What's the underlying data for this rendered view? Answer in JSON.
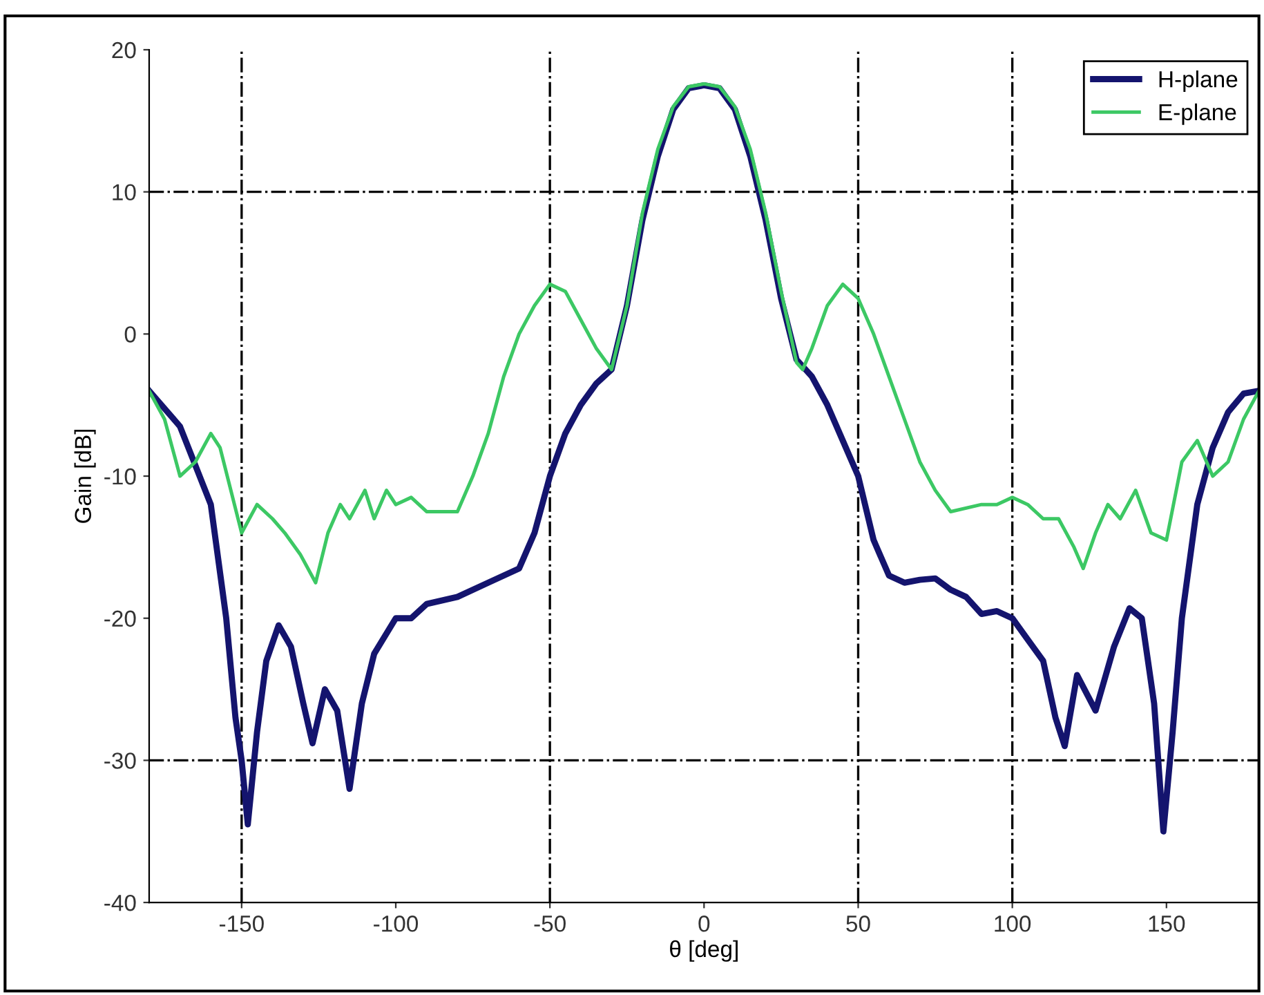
{
  "chart_data": {
    "type": "line",
    "xlabel": "θ [deg]",
    "ylabel": "Gain [dB]",
    "xlim": [
      -180,
      180
    ],
    "ylim": [
      -40,
      20
    ],
    "xticks": [
      -150,
      -100,
      -50,
      0,
      50,
      100,
      150
    ],
    "yticks": [
      -40,
      -30,
      -20,
      -10,
      0,
      10,
      20
    ],
    "legend": "top right",
    "line_style": "solid",
    "ref_lines": [
      {
        "axis": "x",
        "value": -150,
        "line_style": "dashdot"
      },
      {
        "axis": "x",
        "value": -50,
        "line_style": "dashdot"
      },
      {
        "axis": "x",
        "value": 50,
        "line_style": "dashdot"
      },
      {
        "axis": "x",
        "value": 100,
        "line_style": "dashdot"
      },
      {
        "axis": "y",
        "value": 10,
        "line_style": "dashdot"
      },
      {
        "axis": "y",
        "value": -30,
        "line_style": "dashdot"
      }
    ],
    "series": [
      {
        "name": "H-plane",
        "color": "#14146e",
        "x": [
          -180,
          -170,
          -160,
          -155,
          -152,
          -150,
          -148,
          -145,
          -142,
          -138,
          -134,
          -130,
          -127,
          -123,
          -119,
          -115,
          -111,
          -107,
          -100,
          -95,
          -90,
          -80,
          -70,
          -60,
          -55,
          -50,
          -45,
          -40,
          -35,
          -30,
          -25,
          -20,
          -15,
          -10,
          -5,
          0,
          5,
          10,
          15,
          20,
          25,
          30,
          35,
          40,
          45,
          50,
          55,
          60,
          65,
          70,
          75,
          80,
          85,
          90,
          95,
          100,
          105,
          110,
          114,
          117,
          121,
          127,
          133,
          138,
          142,
          146,
          149,
          152,
          155,
          160,
          165,
          170,
          175,
          180
        ],
        "values": [
          -4,
          -6.5,
          -12,
          -20,
          -27,
          -30,
          -34.5,
          -28,
          -23,
          -20.5,
          -22,
          -26,
          -28.8,
          -25,
          -26.5,
          -32,
          -26,
          -22.5,
          -20,
          -20,
          -19,
          -18.5,
          -17.5,
          -16.5,
          -14,
          -10,
          -7,
          -5,
          -3.5,
          -2.5,
          2,
          8,
          12.5,
          15.8,
          17.3,
          17.5,
          17.3,
          15.8,
          12.5,
          8,
          2.5,
          -1.8,
          -3,
          -5,
          -7.5,
          -10,
          -14.5,
          -17,
          -17.5,
          -17.3,
          -17.2,
          -18,
          -18.5,
          -19.7,
          -19.5,
          -20,
          -21.5,
          -23,
          -27,
          -29,
          -24,
          -26.5,
          -22,
          -19.3,
          -20,
          -26,
          -35,
          -28,
          -20,
          -12,
          -8,
          -5.5,
          -4.2,
          -4
        ]
      },
      {
        "name": "E-plane",
        "color": "#3cc864",
        "x": [
          -180,
          -175,
          -170,
          -165,
          -160,
          -157,
          -150,
          -145,
          -140,
          -136,
          -131,
          -126,
          -122,
          -118,
          -115,
          -110,
          -107,
          -103,
          -100,
          -95,
          -90,
          -80,
          -75,
          -70,
          -65,
          -60,
          -55,
          -50,
          -45,
          -40,
          -35,
          -30,
          -25,
          -20,
          -15,
          -10,
          -5,
          0,
          5,
          10,
          15,
          20,
          25,
          30,
          32,
          35,
          40,
          45,
          50,
          55,
          60,
          65,
          70,
          75,
          80,
          90,
          95,
          100,
          105,
          110,
          115,
          120,
          123,
          127,
          131,
          135,
          140,
          145,
          150,
          155,
          160,
          165,
          170,
          175,
          180
        ],
        "values": [
          -4,
          -6,
          -10,
          -9,
          -7,
          -8,
          -14,
          -12,
          -13,
          -14,
          -15.5,
          -17.5,
          -14,
          -12,
          -13,
          -11,
          -13,
          -11,
          -12,
          -11.5,
          -12.5,
          -12.5,
          -10,
          -7,
          -3,
          0,
          2,
          3.5,
          3,
          1,
          -1,
          -2.5,
          2,
          8.5,
          13,
          16,
          17.4,
          17.6,
          17.4,
          16,
          13,
          8.5,
          3,
          -2,
          -2.5,
          -1,
          2,
          3.5,
          2.5,
          0,
          -3,
          -6,
          -9,
          -11,
          -12.5,
          -12,
          -12,
          -11.5,
          -12,
          -13,
          -13,
          -15,
          -16.5,
          -14,
          -12,
          -13,
          -11,
          -14,
          -14.5,
          -9,
          -7.5,
          -10,
          -9,
          -6,
          -4
        ]
      }
    ]
  }
}
